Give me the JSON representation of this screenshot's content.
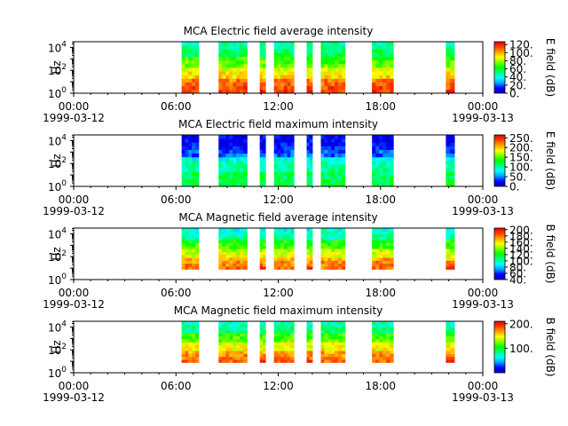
{
  "chart_data": [
    {
      "type": "heatmap",
      "title": "MCA  Electric field average intensity",
      "ylabel": "Hz",
      "y_ticks": [
        "10",
        "10",
        "10"
      ],
      "y_tick_exponents": [
        "0",
        "2",
        "4"
      ],
      "ylim": [
        1,
        31622
      ],
      "y_scale": "log",
      "x_ticks": [
        "00:00",
        "06:00",
        "12:00",
        "18:00",
        "00:00"
      ],
      "x_date_labels": [
        "1999-03-12",
        "1999-03-13"
      ],
      "xlim": [
        "1999-03-12 00:00",
        "1999-03-13 00:00"
      ],
      "colorbar_label": "E field (dB)",
      "colorbar_ticks": [
        "0.",
        "20.",
        "40.",
        "60.",
        "80.",
        "100.",
        "120."
      ],
      "colorbar_range": [
        0,
        127
      ],
      "intervals": [
        [
          "06:20",
          "07:20"
        ],
        [
          "08:30",
          "10:10"
        ],
        [
          "10:55",
          "11:15"
        ],
        [
          "11:45",
          "12:55"
        ],
        [
          "13:40",
          "14:00"
        ],
        [
          "14:30",
          "15:55"
        ],
        [
          "17:30",
          "18:45"
        ],
        [
          "21:50",
          "22:20"
        ]
      ],
      "intensity_profile": [
        0.62,
        0.55,
        0.48,
        0.42
      ]
    },
    {
      "type": "heatmap",
      "title": "MCA  Electric field maximum intensity",
      "ylabel": "Hz",
      "y_ticks": [
        "10",
        "10",
        "10"
      ],
      "y_tick_exponents": [
        "0",
        "2",
        "4"
      ],
      "ylim": [
        1,
        31622
      ],
      "y_scale": "log",
      "x_ticks": [
        "00:00",
        "06:00",
        "12:00",
        "18:00",
        "00:00"
      ],
      "x_date_labels": [
        "1999-03-12",
        "1999-03-13"
      ],
      "xlim": [
        "1999-03-12 00:00",
        "1999-03-13 00:00"
      ],
      "colorbar_label": "E field (dB)",
      "colorbar_ticks": [
        "0.",
        "50.",
        "100.",
        "150.",
        "200.",
        "250."
      ],
      "colorbar_range": [
        0,
        265
      ],
      "intervals": [
        [
          "06:20",
          "07:20"
        ],
        [
          "08:30",
          "10:10"
        ],
        [
          "10:55",
          "11:15"
        ],
        [
          "11:45",
          "12:55"
        ],
        [
          "13:40",
          "14:00"
        ],
        [
          "14:30",
          "15:55"
        ],
        [
          "17:30",
          "18:45"
        ],
        [
          "21:50",
          "22:20"
        ]
      ],
      "intensity_profile": [
        0.34,
        0.3,
        0.26,
        0.22
      ]
    },
    {
      "type": "heatmap",
      "title": "MCA  Magnetic field average intensity",
      "ylabel": "Hz",
      "y_ticks": [
        "10",
        "10",
        "10"
      ],
      "y_tick_exponents": [
        "0",
        "2",
        "4"
      ],
      "ylim": [
        1,
        31622
      ],
      "y_scale": "log",
      "x_ticks": [
        "00:00",
        "06:00",
        "12:00",
        "18:00",
        "00:00"
      ],
      "x_date_labels": [
        "1999-03-12",
        "1999-03-13"
      ],
      "xlim": [
        "1999-03-12 00:00",
        "1999-03-13 00:00"
      ],
      "colorbar_label": "B field (dB)",
      "colorbar_ticks": [
        "40.",
        "60.",
        "80.",
        "100.",
        "120.",
        "140.",
        "160.",
        "180.",
        "200."
      ],
      "colorbar_range": [
        40,
        205
      ],
      "intervals": [
        [
          "06:20",
          "07:20"
        ],
        [
          "08:30",
          "10:10"
        ],
        [
          "10:55",
          "11:15"
        ],
        [
          "11:45",
          "12:55"
        ],
        [
          "13:40",
          "14:00"
        ],
        [
          "14:30",
          "15:55"
        ],
        [
          "17:30",
          "18:45"
        ],
        [
          "21:50",
          "22:20"
        ]
      ],
      "intensity_profile": [
        0.58,
        0.5,
        0.42,
        0.32
      ]
    },
    {
      "type": "heatmap",
      "title": "MCA  Magnetic field maximum intensity",
      "ylabel": "Hz",
      "y_ticks": [
        "10",
        "10",
        "10"
      ],
      "y_tick_exponents": [
        "0",
        "2",
        "4"
      ],
      "ylim": [
        1,
        31622
      ],
      "y_scale": "log",
      "x_ticks": [
        "00:00",
        "06:00",
        "12:00",
        "18:00",
        "00:00"
      ],
      "x_date_labels": [
        "1999-03-12",
        "1999-03-13"
      ],
      "xlim": [
        "1999-03-12 00:00",
        "1999-03-13 00:00"
      ],
      "colorbar_label": "B field (dB)",
      "colorbar_ticks": [
        "100.",
        "200."
      ],
      "colorbar_range": [
        0,
        210
      ],
      "intervals": [
        [
          "06:20",
          "07:20"
        ],
        [
          "08:30",
          "10:10"
        ],
        [
          "10:55",
          "11:15"
        ],
        [
          "11:45",
          "12:55"
        ],
        [
          "13:40",
          "14:00"
        ],
        [
          "14:30",
          "15:55"
        ],
        [
          "17:30",
          "18:45"
        ],
        [
          "21:50",
          "22:20"
        ]
      ],
      "intensity_profile": [
        0.58,
        0.52,
        0.45,
        0.36
      ]
    }
  ],
  "colors": {
    "colormap": [
      "#0000c8",
      "#0000ff",
      "#00a0ff",
      "#00ffff",
      "#00ff80",
      "#00ff00",
      "#80ff00",
      "#ffff00",
      "#ffa000",
      "#ff4000",
      "#e00000"
    ]
  }
}
